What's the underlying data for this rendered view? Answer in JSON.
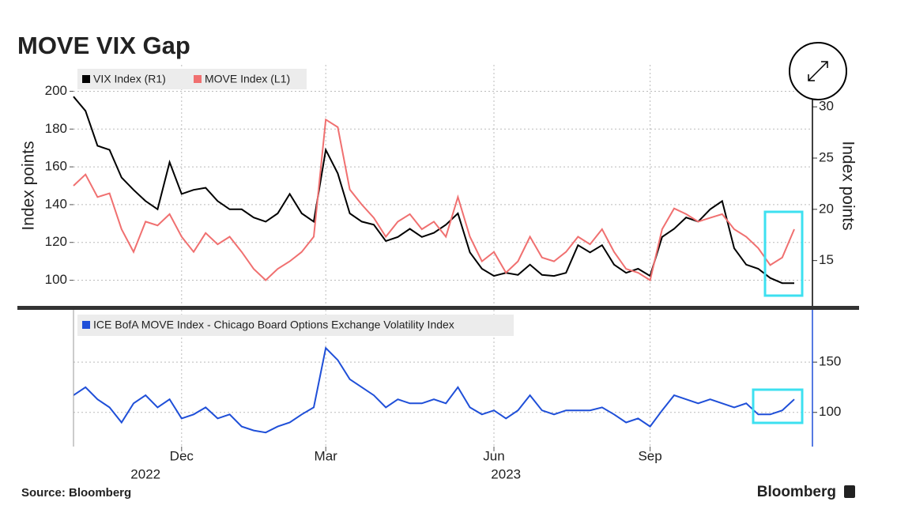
{
  "chart_data": [
    {
      "type": "line",
      "title": "MOVE VIX Gap",
      "ylabel": "Index points",
      "y2label": "Index points",
      "ylim": [
        86,
        214
      ],
      "yticks": [
        100,
        120,
        140,
        160,
        180,
        200
      ],
      "y2lim": [
        10.5,
        34.1
      ],
      "y2ticks": [
        15,
        20,
        25,
        30
      ],
      "grid": true,
      "series": [
        {
          "name": "VIX Index (R1)",
          "color": "#000000",
          "axis": "y2",
          "values": [
            31,
            29.6,
            26.2,
            25.8,
            23.1,
            21.9,
            20.8,
            20,
            24.6,
            21.5,
            21.9,
            22.1,
            20.8,
            20,
            20,
            19.2,
            18.8,
            19.6,
            21.5,
            19.6,
            18.8,
            25.8,
            23.5,
            19.6,
            18.8,
            18.5,
            16.9,
            17.3,
            18.1,
            17.3,
            17.7,
            18.5,
            19.6,
            15.8,
            14.2,
            13.5,
            13.8,
            13.6,
            14.6,
            13.6,
            13.5,
            13.8,
            16.5,
            15.8,
            16.5,
            14.6,
            13.8,
            14.2,
            13.5,
            17.3,
            18.1,
            19.2,
            18.8,
            20,
            20.8,
            16.2,
            14.6,
            14.2,
            13.3,
            12.8,
            12.8
          ]
        },
        {
          "name": "MOVE Index (L1)",
          "color": "#f07070",
          "axis": "y",
          "values": [
            150,
            156,
            144,
            146,
            127,
            115,
            131,
            129,
            135,
            123,
            115,
            125,
            119,
            123,
            115,
            106,
            100,
            106,
            110,
            115,
            123,
            185,
            181,
            148,
            140,
            133,
            123,
            131,
            135,
            127,
            131,
            123,
            144,
            123,
            110,
            115,
            104,
            110,
            123,
            112,
            110,
            115,
            123,
            119,
            127,
            115,
            106,
            104,
            100,
            127,
            138,
            135,
            131,
            133,
            135,
            127,
            123,
            117,
            108,
            112,
            127
          ]
        }
      ]
    },
    {
      "type": "line",
      "categories": [
        null,
        null,
        null,
        null,
        null,
        null,
        null,
        null,
        null,
        "Dec",
        null,
        null,
        null,
        null,
        null,
        null,
        null,
        null,
        null,
        null,
        null,
        "Mar",
        null,
        null,
        null,
        null,
        null,
        null,
        null,
        null,
        null,
        null,
        null,
        null,
        null,
        "Jun",
        null,
        null,
        null,
        null,
        null,
        null,
        null,
        null,
        null,
        null,
        null,
        null,
        "Sep",
        null,
        null,
        null,
        null,
        null,
        null,
        null,
        null,
        null,
        null,
        null,
        null
      ],
      "year_labels": [
        null,
        null,
        null,
        null,
        null,
        null,
        "2022",
        null,
        null,
        null,
        null,
        null,
        null,
        null,
        null,
        null,
        null,
        null,
        null,
        null,
        null,
        null,
        null,
        null,
        null,
        null,
        null,
        null,
        null,
        null,
        null,
        null,
        null,
        null,
        null,
        null,
        "2023",
        null,
        null,
        null,
        null,
        null,
        null,
        null,
        null,
        null,
        null,
        null,
        null,
        null,
        null,
        null,
        null,
        null,
        null,
        null,
        null,
        null,
        null,
        null,
        null
      ],
      "y2lim": [
        66,
        202
      ],
      "y2ticks": [
        100,
        150
      ],
      "grid": true,
      "series": [
        {
          "name": "ICE BofA MOVE Index - Chicago Board Options Exchange Volatility Index",
          "color": "#1f4fd8",
          "axis": "y2",
          "values": [
            117,
            125,
            113,
            105,
            90,
            109,
            117,
            105,
            113,
            94,
            98,
            105,
            94,
            98,
            86,
            82,
            80,
            86,
            90,
            98,
            105,
            164,
            152,
            133,
            125,
            117,
            105,
            113,
            109,
            109,
            113,
            109,
            125,
            105,
            98,
            102,
            94,
            102,
            117,
            102,
            98,
            102,
            102,
            102,
            105,
            98,
            90,
            94,
            86,
            102,
            117,
            113,
            109,
            113,
            109,
            105,
            109,
            98,
            98,
            102,
            113
          ]
        }
      ]
    }
  ],
  "source": "Source: Bloomberg",
  "brand": "Bloomberg"
}
